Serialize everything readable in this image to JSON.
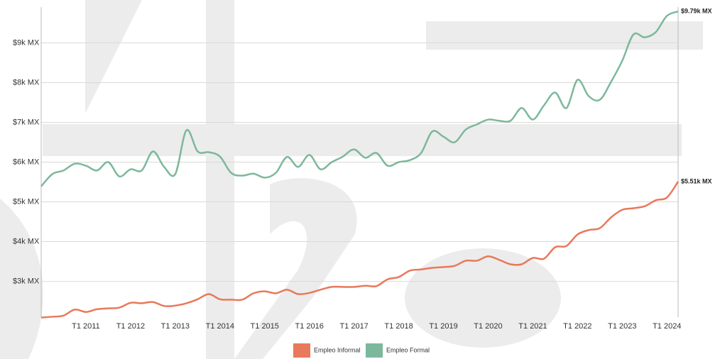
{
  "chart_data": {
    "type": "line",
    "categories": [
      null,
      null,
      null,
      null,
      "T1 2011",
      null,
      null,
      null,
      "T1 2012",
      null,
      null,
      null,
      "T1 2013",
      null,
      null,
      null,
      "T1 2014",
      null,
      null,
      null,
      "T1 2015",
      null,
      null,
      null,
      "T1 2016",
      null,
      null,
      null,
      "T1 2017",
      null,
      null,
      null,
      "T1 2018",
      null,
      null,
      null,
      "T1 2019",
      null,
      null,
      null,
      "T1 2020",
      null,
      null,
      null,
      "T1 2021",
      null,
      null,
      null,
      "T1 2022",
      null,
      null,
      null,
      "T1 2023",
      null,
      null,
      null,
      "T1 2024",
      null
    ],
    "series": [
      {
        "name": "Empleo Informal",
        "color": "#e8795a",
        "values": [
          2090,
          2110,
          2140,
          2290,
          2230,
          2300,
          2320,
          2340,
          2460,
          2450,
          2480,
          2380,
          2390,
          2450,
          2550,
          2680,
          2550,
          2540,
          2540,
          2700,
          2750,
          2700,
          2790,
          2680,
          2710,
          2790,
          2860,
          2860,
          2860,
          2890,
          2880,
          3050,
          3110,
          3270,
          3300,
          3340,
          3360,
          3390,
          3520,
          3520,
          3630,
          3540,
          3430,
          3430,
          3590,
          3570,
          3860,
          3890,
          4180,
          4290,
          4340,
          4610,
          4800,
          4840,
          4890,
          5040,
          5110,
          5510
        ],
        "value_labels": [
          null,
          null,
          null,
          null,
          null,
          null,
          null,
          null,
          null,
          null,
          null,
          null,
          null,
          null,
          null,
          null,
          null,
          null,
          null,
          null,
          null,
          null,
          null,
          null,
          null,
          null,
          null,
          null,
          null,
          null,
          null,
          null,
          null,
          null,
          null,
          null,
          null,
          null,
          null,
          null,
          null,
          null,
          null,
          null,
          null,
          null,
          null,
          null,
          null,
          null,
          null,
          null,
          null,
          null,
          null,
          null,
          null,
          "$5.51k MX"
        ]
      },
      {
        "name": "Empleo Formal",
        "color": "#7db89b",
        "values": [
          5390,
          5700,
          5790,
          5960,
          5910,
          5790,
          6000,
          5640,
          5820,
          5790,
          6270,
          5880,
          5700,
          6800,
          6270,
          6250,
          6140,
          5730,
          5660,
          5710,
          5610,
          5730,
          6130,
          5880,
          6180,
          5820,
          6000,
          6140,
          6320,
          6110,
          6230,
          5910,
          6000,
          6050,
          6230,
          6770,
          6640,
          6500,
          6820,
          6950,
          7070,
          7040,
          7040,
          7360,
          7070,
          7430,
          7750,
          7360,
          8070,
          7660,
          7570,
          8020,
          8550,
          9210,
          9140,
          9270,
          9680,
          9790
        ],
        "value_labels": [
          null,
          null,
          null,
          null,
          null,
          null,
          null,
          null,
          null,
          null,
          null,
          null,
          null,
          null,
          null,
          null,
          null,
          null,
          null,
          null,
          null,
          null,
          null,
          null,
          null,
          null,
          null,
          null,
          null,
          null,
          null,
          null,
          null,
          null,
          null,
          null,
          null,
          null,
          null,
          null,
          null,
          null,
          null,
          null,
          null,
          null,
          null,
          null,
          null,
          null,
          null,
          null,
          null,
          null,
          null,
          null,
          null,
          "$9.79k MX"
        ]
      }
    ],
    "ylim": [
      2100,
      9900
    ],
    "yticks": [
      {
        "value": 3000,
        "label": "$3k MX"
      },
      {
        "value": 4000,
        "label": "$4k MX"
      },
      {
        "value": 5000,
        "label": "$5k MX"
      },
      {
        "value": 6000,
        "label": "$6k MX"
      },
      {
        "value": 7000,
        "label": "$7k MX"
      },
      {
        "value": 8000,
        "label": "$8k MX"
      },
      {
        "value": 9000,
        "label": "$9k MX"
      }
    ],
    "grid": true,
    "legend": "bottom"
  }
}
